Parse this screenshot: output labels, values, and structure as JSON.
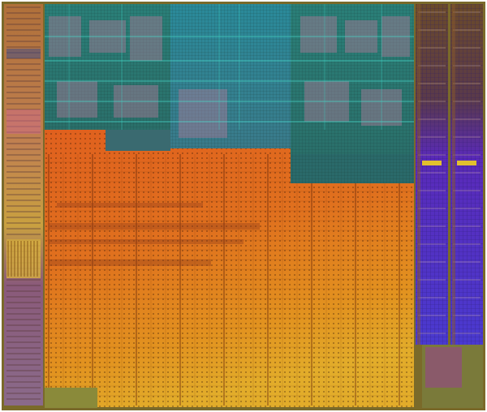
{
  "image": {
    "subject": "die-shot",
    "palette": {
      "background": "#ffffff",
      "frame": "#7a6a2a",
      "left_column_top": "#a66a3a",
      "left_column_mid": "#c9a040",
      "left_column_bottom": "#7a5a7a",
      "teal_block": "#2f7f78",
      "teal_block_dark": "#1f5d5a",
      "teal_center": "#2a8aa0",
      "orange_core_top": "#e0601e",
      "orange_core_mid": "#e07a1c",
      "orange_core_bottom": "#e2a22a",
      "purple_stripe": "#5a2aa8",
      "purple_stripe_bright": "#6a3ad8",
      "olive_stripe": "#7a6a2a",
      "pink_block": "#c28aa8",
      "green_bottom_right": "#6a8a3a",
      "grid_line": "#5a2a10",
      "dot": "#3a1a08"
    }
  }
}
